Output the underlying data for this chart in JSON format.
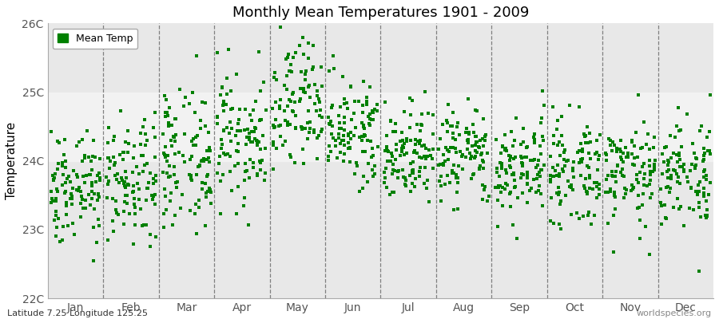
{
  "title": "Monthly Mean Temperatures 1901 - 2009",
  "ylabel": "Temperature",
  "xlabel_bottom": "Latitude 7.25 Longitude 125.25",
  "watermark": "worldspecies.org",
  "ylim": [
    22.0,
    26.0
  ],
  "ytick_labels": [
    "22C",
    "23C",
    "24C",
    "25C",
    "26C"
  ],
  "ytick_values": [
    22.0,
    23.0,
    24.0,
    25.0,
    26.0
  ],
  "months": [
    "Jan",
    "Feb",
    "Mar",
    "Apr",
    "May",
    "Jun",
    "Jul",
    "Aug",
    "Sep",
    "Oct",
    "Nov",
    "Dec"
  ],
  "dot_color": "#008000",
  "legend_label": "Mean Temp",
  "plot_bg_color": "#e8e8e8",
  "band_color": "#f2f2f2",
  "num_years": 109,
  "monthly_means": [
    23.65,
    23.65,
    24.05,
    24.35,
    24.75,
    24.4,
    24.1,
    24.1,
    23.9,
    23.85,
    23.85,
    23.85
  ],
  "monthly_stds": [
    0.42,
    0.45,
    0.48,
    0.48,
    0.52,
    0.38,
    0.35,
    0.35,
    0.35,
    0.35,
    0.4,
    0.42
  ],
  "seed": 42
}
